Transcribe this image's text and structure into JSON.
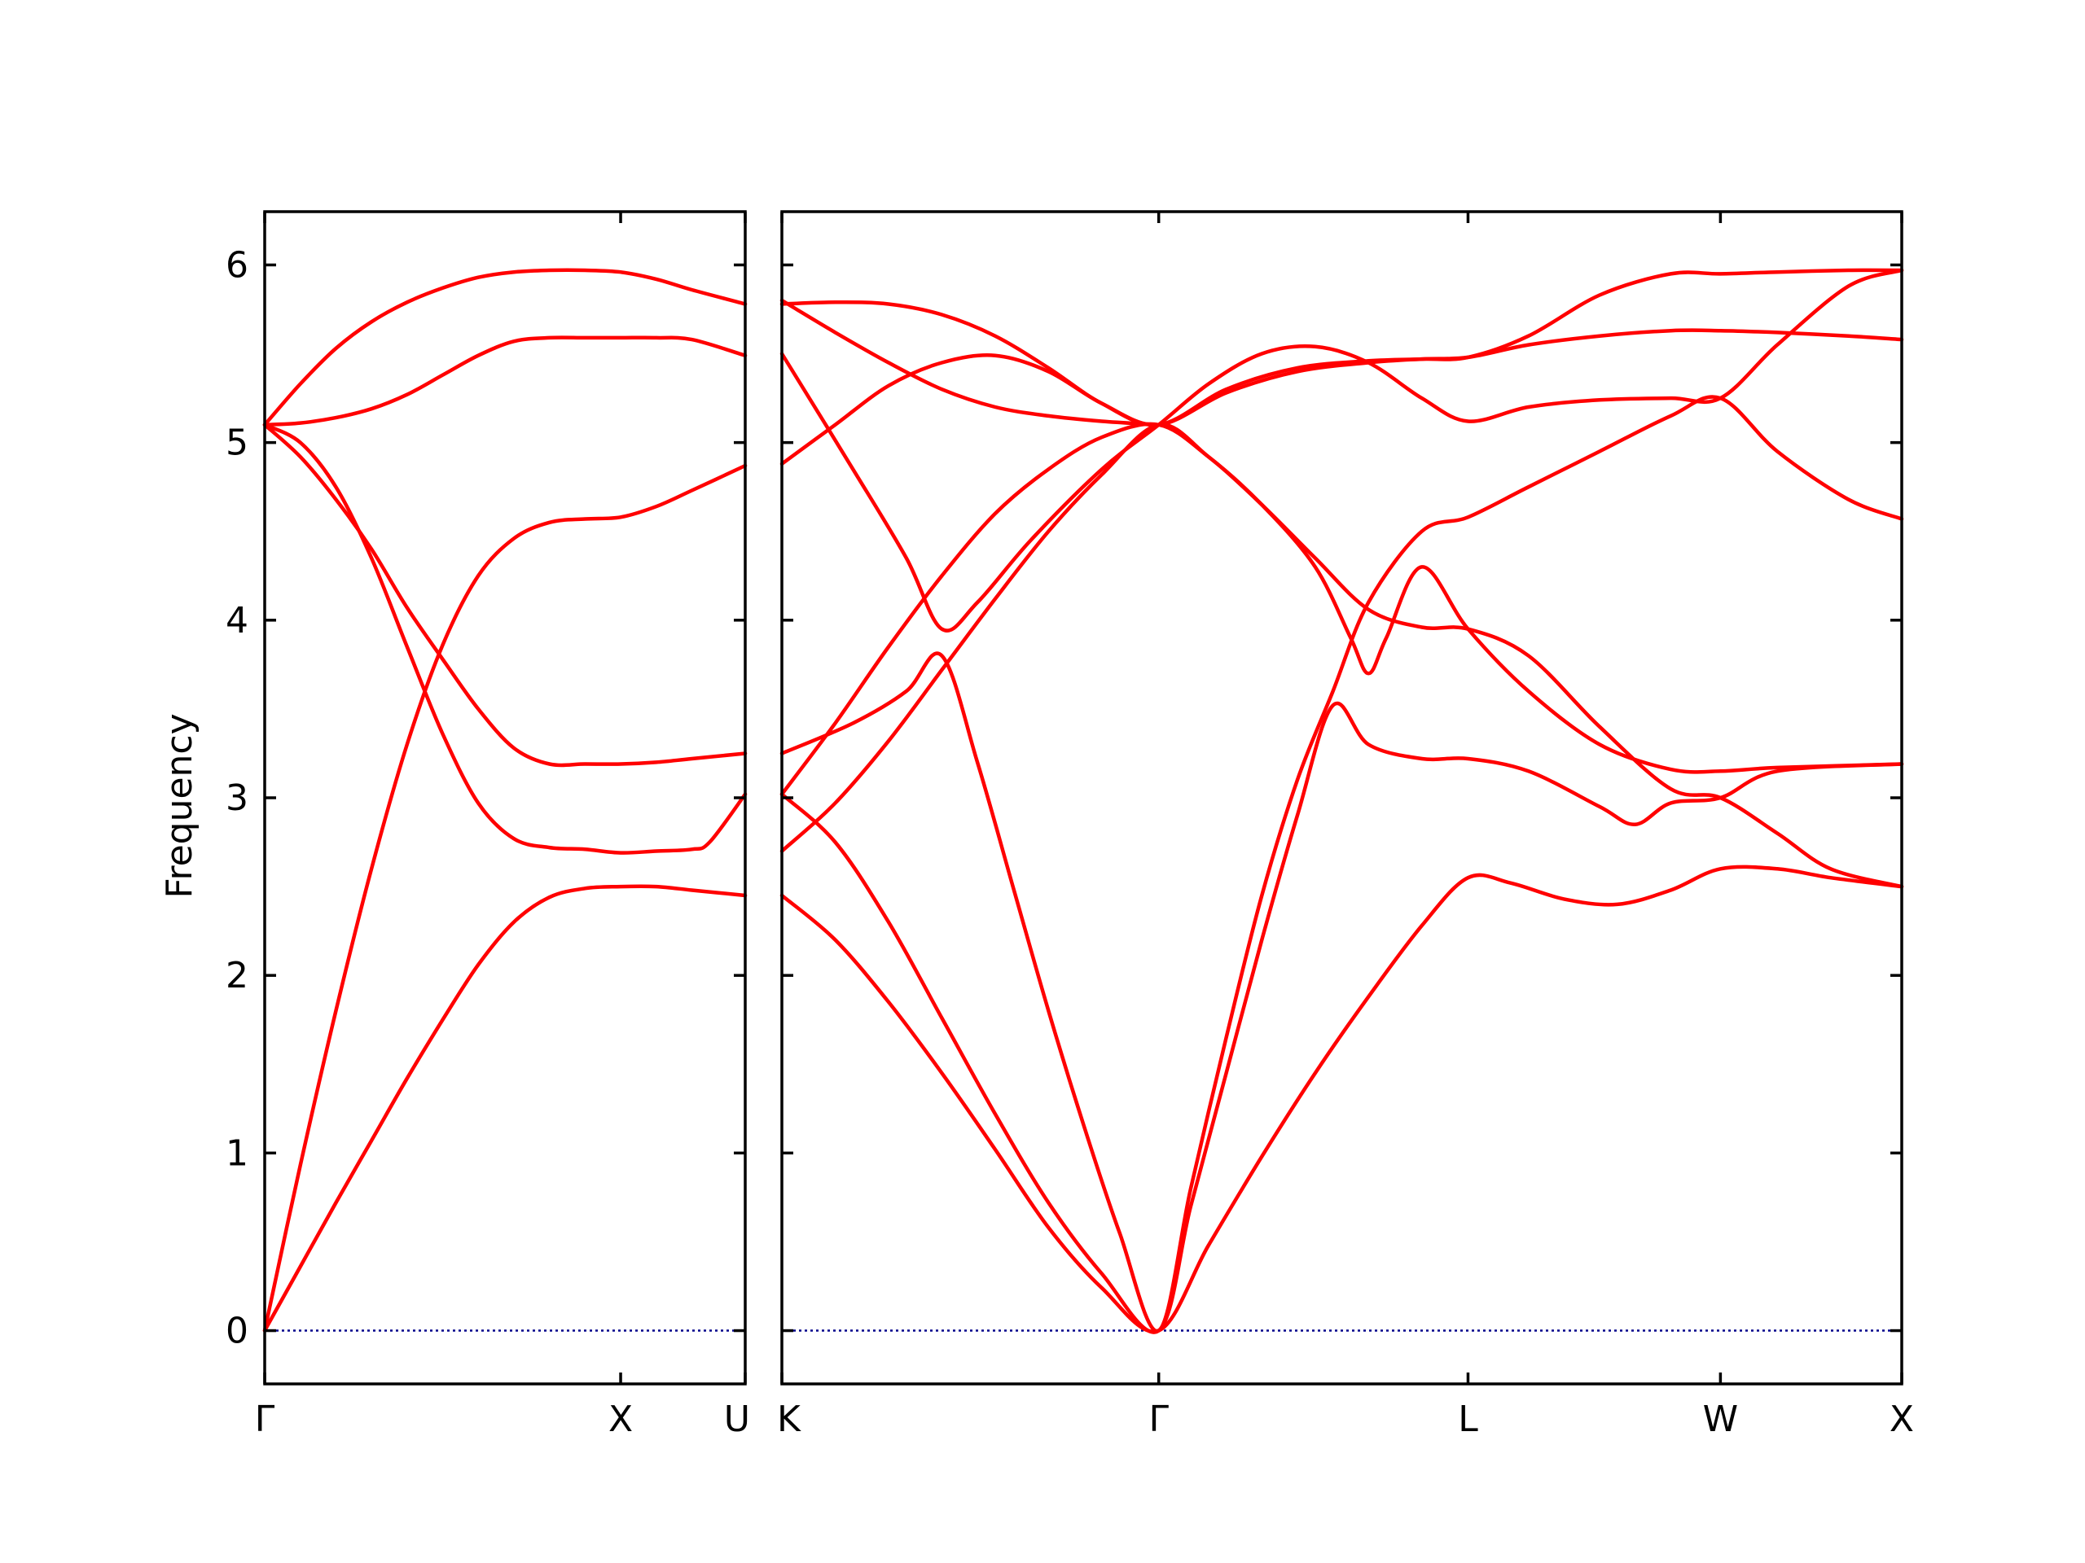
{
  "chart_data": {
    "type": "line",
    "ylabel": "Frequency",
    "ylim": [
      -0.3,
      6.3
    ],
    "yticks": [
      0,
      1,
      2,
      3,
      4,
      5,
      6
    ],
    "grid": false,
    "colors": {
      "bands": "#ff0000",
      "zero_line": "#00008b",
      "axes": "#000000"
    },
    "panels": [
      {
        "name": "left-panel",
        "xlim": [
          0,
          1.35
        ],
        "ticks": [
          {
            "label": "Γ",
            "x": 0
          },
          {
            "label": "X",
            "x": 1.0
          },
          {
            "label": "U",
            "x": 1.35
          }
        ],
        "bands": [
          [
            [
              0,
              0
            ],
            [
              0.1,
              0.36
            ],
            [
              0.2,
              0.72
            ],
            [
              0.3,
              1.07
            ],
            [
              0.4,
              1.42
            ],
            [
              0.5,
              1.75
            ],
            [
              0.6,
              2.06
            ],
            [
              0.7,
              2.3
            ],
            [
              0.8,
              2.44
            ],
            [
              0.9,
              2.49
            ],
            [
              1.0,
              2.5
            ],
            [
              1.1,
              2.5
            ],
            [
              1.2,
              2.48
            ],
            [
              1.35,
              2.45
            ]
          ],
          [
            [
              0,
              0
            ],
            [
              0.1,
              0.93
            ],
            [
              0.2,
              1.8
            ],
            [
              0.3,
              2.6
            ],
            [
              0.4,
              3.3
            ],
            [
              0.5,
              3.86
            ],
            [
              0.6,
              4.25
            ],
            [
              0.7,
              4.46
            ],
            [
              0.8,
              4.55
            ],
            [
              0.9,
              4.57
            ],
            [
              1.0,
              4.58
            ],
            [
              1.1,
              4.64
            ],
            [
              1.2,
              4.73
            ],
            [
              1.35,
              4.87
            ]
          ],
          [
            [
              0,
              5.1
            ],
            [
              0.1,
              5.0
            ],
            [
              0.2,
              4.75
            ],
            [
              0.3,
              4.35
            ],
            [
              0.4,
              3.85
            ],
            [
              0.5,
              3.36
            ],
            [
              0.6,
              2.97
            ],
            [
              0.7,
              2.77
            ],
            [
              0.8,
              2.72
            ],
            [
              0.9,
              2.71
            ],
            [
              1.0,
              2.69
            ],
            [
              1.1,
              2.7
            ],
            [
              1.2,
              2.71
            ],
            [
              1.25,
              2.75
            ],
            [
              1.35,
              3.02
            ]
          ],
          [
            [
              0,
              5.1
            ],
            [
              0.1,
              4.92
            ],
            [
              0.2,
              4.68
            ],
            [
              0.3,
              4.4
            ],
            [
              0.4,
              4.07
            ],
            [
              0.5,
              3.78
            ],
            [
              0.6,
              3.5
            ],
            [
              0.7,
              3.28
            ],
            [
              0.8,
              3.19
            ],
            [
              0.9,
              3.19
            ],
            [
              1.0,
              3.19
            ],
            [
              1.1,
              3.2
            ],
            [
              1.2,
              3.22
            ],
            [
              1.35,
              3.25
            ]
          ],
          [
            [
              0,
              5.1
            ],
            [
              0.1,
              5.11
            ],
            [
              0.2,
              5.14
            ],
            [
              0.3,
              5.19
            ],
            [
              0.4,
              5.27
            ],
            [
              0.5,
              5.38
            ],
            [
              0.6,
              5.49
            ],
            [
              0.7,
              5.57
            ],
            [
              0.8,
              5.59
            ],
            [
              0.9,
              5.59
            ],
            [
              1.0,
              5.59
            ],
            [
              1.1,
              5.59
            ],
            [
              1.2,
              5.58
            ],
            [
              1.35,
              5.49
            ]
          ],
          [
            [
              0,
              5.1
            ],
            [
              0.1,
              5.33
            ],
            [
              0.2,
              5.53
            ],
            [
              0.3,
              5.68
            ],
            [
              0.4,
              5.79
            ],
            [
              0.5,
              5.87
            ],
            [
              0.6,
              5.93
            ],
            [
              0.7,
              5.96
            ],
            [
              0.8,
              5.97
            ],
            [
              0.9,
              5.97
            ],
            [
              1.0,
              5.96
            ],
            [
              1.1,
              5.92
            ],
            [
              1.2,
              5.86
            ],
            [
              1.35,
              5.78
            ]
          ]
        ],
        "zero_line": 0
      },
      {
        "name": "right-panel",
        "xlim": [
          0,
          3.15
        ],
        "ticks": [
          {
            "label": "K",
            "x": 0
          },
          {
            "label": "Γ",
            "x": 1.06
          },
          {
            "label": "L",
            "x": 1.93
          },
          {
            "label": "W",
            "x": 2.64
          },
          {
            "label": "X",
            "x": 3.15
          }
        ],
        "bands": [
          [
            [
              0,
              2.45
            ],
            [
              0.15,
              2.2
            ],
            [
              0.3,
              1.85
            ],
            [
              0.45,
              1.45
            ],
            [
              0.6,
              1.02
            ],
            [
              0.75,
              0.58
            ],
            [
              0.9,
              0.24
            ],
            [
              1.06,
              0
            ],
            [
              1.2,
              0.48
            ],
            [
              1.35,
              0.98
            ],
            [
              1.5,
              1.45
            ],
            [
              1.65,
              1.88
            ],
            [
              1.8,
              2.28
            ],
            [
              1.93,
              2.55
            ],
            [
              2.05,
              2.52
            ],
            [
              2.2,
              2.43
            ],
            [
              2.35,
              2.4
            ],
            [
              2.5,
              2.48
            ],
            [
              2.64,
              2.6
            ],
            [
              2.8,
              2.6
            ],
            [
              2.95,
              2.55
            ],
            [
              3.15,
              2.5
            ]
          ],
          [
            [
              0,
              3.02
            ],
            [
              0.15,
              2.75
            ],
            [
              0.3,
              2.3
            ],
            [
              0.45,
              1.76
            ],
            [
              0.6,
              1.22
            ],
            [
              0.75,
              0.72
            ],
            [
              0.9,
              0.32
            ],
            [
              1.06,
              0
            ],
            [
              1.15,
              0.7
            ],
            [
              1.25,
              1.45
            ],
            [
              1.35,
              2.2
            ],
            [
              1.45,
              2.9
            ],
            [
              1.55,
              3.52
            ],
            [
              1.65,
              3.3
            ],
            [
              1.8,
              3.22
            ],
            [
              1.93,
              3.22
            ],
            [
              2.1,
              3.15
            ],
            [
              2.3,
              2.95
            ],
            [
              2.4,
              2.85
            ],
            [
              2.5,
              2.97
            ],
            [
              2.64,
              3.0
            ],
            [
              2.8,
              3.15
            ],
            [
              3.15,
              3.19
            ]
          ],
          [
            [
              0,
              3.25
            ],
            [
              0.2,
              3.42
            ],
            [
              0.35,
              3.6
            ],
            [
              0.45,
              3.8
            ],
            [
              0.55,
              3.2
            ],
            [
              0.65,
              2.5
            ],
            [
              0.75,
              1.8
            ],
            [
              0.85,
              1.15
            ],
            [
              0.95,
              0.55
            ],
            [
              1.06,
              0
            ],
            [
              1.15,
              0.8
            ],
            [
              1.25,
              1.65
            ],
            [
              1.35,
              2.45
            ],
            [
              1.45,
              3.1
            ],
            [
              1.55,
              3.6
            ],
            [
              1.65,
              4.1
            ],
            [
              1.8,
              4.5
            ],
            [
              1.93,
              4.58
            ],
            [
              2.1,
              4.75
            ],
            [
              2.3,
              4.95
            ],
            [
              2.5,
              5.15
            ],
            [
              2.64,
              5.25
            ],
            [
              2.8,
              4.95
            ],
            [
              3.0,
              4.68
            ],
            [
              3.15,
              4.57
            ]
          ],
          [
            [
              0,
              2.7
            ],
            [
              0.15,
              2.97
            ],
            [
              0.3,
              3.32
            ],
            [
              0.45,
              3.72
            ],
            [
              0.6,
              4.12
            ],
            [
              0.75,
              4.5
            ],
            [
              0.9,
              4.82
            ],
            [
              1.06,
              5.1
            ],
            [
              1.2,
              4.92
            ],
            [
              1.35,
              4.65
            ],
            [
              1.5,
              4.35
            ],
            [
              1.65,
              4.06
            ],
            [
              1.8,
              3.96
            ],
            [
              1.93,
              3.95
            ],
            [
              2.1,
              3.8
            ],
            [
              2.3,
              3.4
            ],
            [
              2.5,
              3.05
            ],
            [
              2.64,
              3.0
            ],
            [
              2.8,
              2.8
            ],
            [
              2.95,
              2.6
            ],
            [
              3.15,
              2.5
            ]
          ],
          [
            [
              0,
              3.02
            ],
            [
              0.15,
              3.42
            ],
            [
              0.3,
              3.85
            ],
            [
              0.45,
              4.25
            ],
            [
              0.6,
              4.6
            ],
            [
              0.75,
              4.85
            ],
            [
              0.9,
              5.03
            ],
            [
              1.06,
              5.1
            ],
            [
              1.2,
              4.92
            ],
            [
              1.35,
              4.65
            ],
            [
              1.5,
              4.3
            ],
            [
              1.6,
              3.9
            ],
            [
              1.65,
              3.7
            ],
            [
              1.7,
              3.9
            ],
            [
              1.8,
              4.3
            ],
            [
              1.93,
              3.95
            ],
            [
              2.1,
              3.6
            ],
            [
              2.3,
              3.3
            ],
            [
              2.5,
              3.16
            ],
            [
              2.64,
              3.15
            ],
            [
              2.8,
              3.17
            ],
            [
              3.15,
              3.19
            ]
          ],
          [
            [
              0,
              5.5
            ],
            [
              0.2,
              4.85
            ],
            [
              0.35,
              4.35
            ],
            [
              0.45,
              3.95
            ],
            [
              0.55,
              4.1
            ],
            [
              0.7,
              4.45
            ],
            [
              0.9,
              4.85
            ],
            [
              1.06,
              5.1
            ],
            [
              1.2,
              5.33
            ],
            [
              1.35,
              5.5
            ],
            [
              1.5,
              5.54
            ],
            [
              1.65,
              5.45
            ],
            [
              1.8,
              5.25
            ],
            [
              1.93,
              5.12
            ],
            [
              2.1,
              5.2
            ],
            [
              2.3,
              5.24
            ],
            [
              2.5,
              5.25
            ],
            [
              2.64,
              5.25
            ],
            [
              2.8,
              5.55
            ],
            [
              3.0,
              5.88
            ],
            [
              3.15,
              5.97
            ]
          ],
          [
            [
              0,
              4.88
            ],
            [
              0.15,
              5.1
            ],
            [
              0.3,
              5.32
            ],
            [
              0.45,
              5.45
            ],
            [
              0.6,
              5.49
            ],
            [
              0.75,
              5.4
            ],
            [
              0.9,
              5.22
            ],
            [
              1.06,
              5.1
            ],
            [
              1.25,
              5.28
            ],
            [
              1.45,
              5.4
            ],
            [
              1.65,
              5.45
            ],
            [
              1.8,
              5.47
            ],
            [
              1.93,
              5.48
            ],
            [
              2.1,
              5.55
            ],
            [
              2.3,
              5.6
            ],
            [
              2.5,
              5.63
            ],
            [
              2.64,
              5.63
            ],
            [
              2.8,
              5.62
            ],
            [
              3.0,
              5.6
            ],
            [
              3.15,
              5.58
            ]
          ],
          [
            [
              0,
              5.78
            ],
            [
              0.15,
              5.79
            ],
            [
              0.3,
              5.78
            ],
            [
              0.45,
              5.72
            ],
            [
              0.6,
              5.6
            ],
            [
              0.75,
              5.42
            ],
            [
              0.9,
              5.22
            ],
            [
              1.06,
              5.1
            ],
            [
              1.25,
              5.3
            ],
            [
              1.45,
              5.42
            ],
            [
              1.65,
              5.46
            ],
            [
              1.8,
              5.47
            ],
            [
              1.93,
              5.48
            ],
            [
              2.1,
              5.6
            ],
            [
              2.3,
              5.83
            ],
            [
              2.5,
              5.95
            ],
            [
              2.64,
              5.95
            ],
            [
              2.8,
              5.96
            ],
            [
              3.0,
              5.97
            ],
            [
              3.15,
              5.97
            ]
          ],
          [
            [
              0,
              5.8
            ],
            [
              0.15,
              5.62
            ],
            [
              0.3,
              5.45
            ],
            [
              0.45,
              5.3
            ],
            [
              0.6,
              5.2
            ],
            [
              0.75,
              5.15
            ],
            [
              0.9,
              5.12
            ],
            [
              1.06,
              5.1
            ]
          ]
        ],
        "zero_line": 0
      }
    ]
  }
}
